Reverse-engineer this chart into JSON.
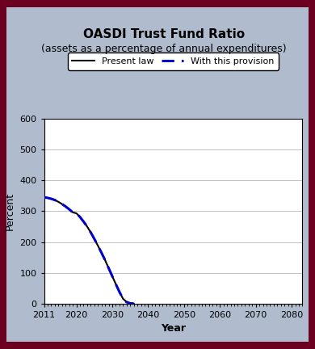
{
  "title": "OASDI Trust Fund Ratio",
  "subtitle": "(assets as a percentage of annual expenditures)",
  "xlabel": "Year",
  "ylabel": "Percent",
  "xlim": [
    2011,
    2083
  ],
  "ylim": [
    0,
    600
  ],
  "xticks": [
    2011,
    2020,
    2030,
    2040,
    2050,
    2060,
    2070,
    2080
  ],
  "yticks": [
    0,
    100,
    200,
    300,
    400,
    500,
    600
  ],
  "background_color": "#b0bcce",
  "plot_bg_color": "#ffffff",
  "border_color": "#6b0020",
  "present_law": {
    "years": [
      2011,
      2012,
      2013,
      2014,
      2015,
      2016,
      2017,
      2018,
      2019,
      2020,
      2021,
      2022,
      2023,
      2024,
      2025,
      2026,
      2027,
      2028,
      2029,
      2030,
      2031,
      2032,
      2033,
      2034,
      2035,
      2036
    ],
    "values": [
      345,
      343,
      340,
      336,
      330,
      323,
      315,
      306,
      296,
      293,
      281,
      266,
      250,
      231,
      210,
      188,
      165,
      141,
      115,
      89,
      63,
      38,
      16,
      5,
      1,
      0
    ],
    "color": "#000000",
    "linewidth": 1.5,
    "linestyle": "solid",
    "label": "Present law"
  },
  "provision": {
    "years": [
      2011,
      2012,
      2013,
      2014,
      2015,
      2016,
      2017,
      2018,
      2019,
      2020,
      2021,
      2022,
      2023,
      2024,
      2025,
      2026,
      2027,
      2028,
      2029,
      2030,
      2031,
      2032,
      2033,
      2034,
      2035,
      2036
    ],
    "values": [
      345,
      343,
      340,
      336,
      330,
      323,
      315,
      306,
      296,
      293,
      281,
      266,
      250,
      231,
      210,
      188,
      165,
      141,
      115,
      89,
      63,
      38,
      16,
      5,
      1,
      0
    ],
    "color": "#0000cc",
    "linewidth": 2.2,
    "label": "With this provision"
  },
  "legend_box_color": "#ffffff",
  "grid_color": "#aaaaaa",
  "title_fontsize": 11,
  "subtitle_fontsize": 9,
  "axis_label_fontsize": 9,
  "tick_fontsize": 8,
  "legend_fontsize": 8
}
